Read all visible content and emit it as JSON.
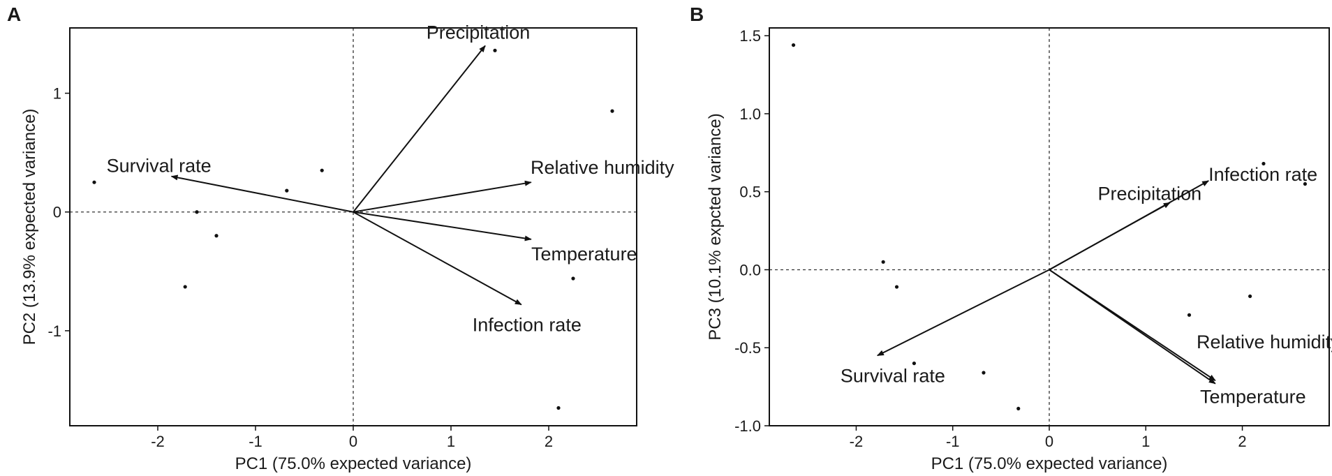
{
  "chart_data": [
    {
      "panel": "A",
      "type": "scatter",
      "subtype": "pca-biplot",
      "xlabel": "PC1 (75.0% expected variance)",
      "ylabel": "PC2 (13.9% expected variance)",
      "xlim": [
        -2.9,
        2.9
      ],
      "ylim": [
        -1.8,
        1.55
      ],
      "xticks": [
        -2,
        -1,
        0,
        1,
        2
      ],
      "yticks": [
        -1,
        0,
        1
      ],
      "xtick_labels": [
        "-2",
        "-1",
        "0",
        "1",
        "2"
      ],
      "ytick_labels": [
        "-1",
        "0",
        "1"
      ],
      "points": [
        {
          "x": -2.65,
          "y": 0.25
        },
        {
          "x": -1.6,
          "y": 0.0
        },
        {
          "x": -1.4,
          "y": -0.2
        },
        {
          "x": -1.72,
          "y": -0.63
        },
        {
          "x": -0.68,
          "y": 0.18
        },
        {
          "x": -0.32,
          "y": 0.35
        },
        {
          "x": 1.45,
          "y": 1.36
        },
        {
          "x": 2.65,
          "y": 0.85
        },
        {
          "x": 2.25,
          "y": -0.56
        },
        {
          "x": 2.1,
          "y": -1.65
        }
      ],
      "loadings": [
        {
          "label": "Survival rate",
          "x": -1.86,
          "y": 0.3
        },
        {
          "label": "Precipitation",
          "x": 1.35,
          "y": 1.4
        },
        {
          "label": "Relative humidity",
          "x": 1.82,
          "y": 0.25
        },
        {
          "label": "Temperature",
          "x": 1.82,
          "y": -0.23
        },
        {
          "label": "Infection rate",
          "x": 1.72,
          "y": -0.78
        }
      ]
    },
    {
      "panel": "B",
      "type": "scatter",
      "subtype": "pca-biplot",
      "xlabel": "PC1 (75.0% expected variance)",
      "ylabel": "PC3 (10.1% expcted variance)",
      "xlim": [
        -2.9,
        2.9
      ],
      "ylim": [
        -1.0,
        1.55
      ],
      "xticks": [
        -2,
        -1,
        0,
        1,
        2
      ],
      "yticks": [
        -1.0,
        -0.5,
        0.0,
        0.5,
        1.0,
        1.5
      ],
      "xtick_labels": [
        "-2",
        "-1",
        "0",
        "1",
        "2"
      ],
      "ytick_labels": [
        "-1.0",
        "-0.5",
        "0.0",
        "0.5",
        "1.0",
        "1.5"
      ],
      "points": [
        {
          "x": -2.65,
          "y": 1.44
        },
        {
          "x": -1.72,
          "y": 0.05
        },
        {
          "x": -1.58,
          "y": -0.11
        },
        {
          "x": -1.4,
          "y": -0.6
        },
        {
          "x": -0.68,
          "y": -0.66
        },
        {
          "x": -0.32,
          "y": -0.89
        },
        {
          "x": 1.45,
          "y": -0.29
        },
        {
          "x": 2.08,
          "y": -0.17
        },
        {
          "x": 2.22,
          "y": 0.68
        },
        {
          "x": 2.65,
          "y": 0.55
        }
      ],
      "loadings": [
        {
          "label": "Survival rate",
          "x": -1.78,
          "y": -0.55
        },
        {
          "label": "Precipitation",
          "x": 1.25,
          "y": 0.43
        },
        {
          "label": "Infection rate",
          "x": 1.65,
          "y": 0.57
        },
        {
          "label": "Relative humidity",
          "x": 1.72,
          "y": -0.71
        },
        {
          "label": "Temperature",
          "x": 1.72,
          "y": -0.73
        }
      ]
    }
  ]
}
